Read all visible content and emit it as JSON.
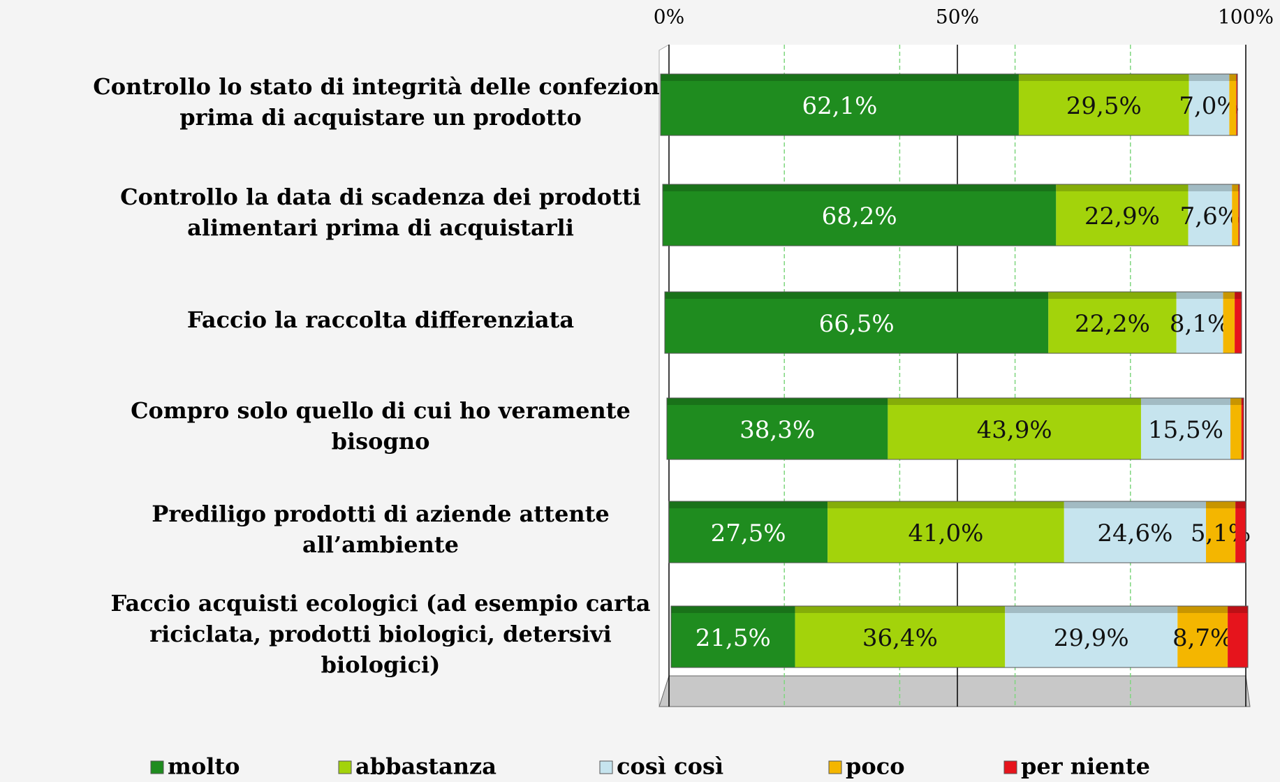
{
  "chart_data": {
    "type": "stacked-bar-horizontal",
    "categories": [
      "Controllo lo stato di integrità delle confezioni\nprima di acquistare un prodotto",
      "Controllo la data di scadenza dei prodotti\nalimentari prima di acquistarli",
      "Faccio la raccolta differenziata",
      "Compro solo quello di cui ho veramente\nbisogno",
      "Prediligo prodotti di aziende attente\nall’ambiente",
      "Faccio acquisti ecologici (ad esempio carta\nriciclata, prodotti biologici, detersivi\nbiologici)"
    ],
    "series": [
      {
        "name": "molto",
        "color": "#1f8c1f",
        "values": [
          62.1,
          68.2,
          66.5,
          38.3,
          27.5,
          21.5
        ],
        "value_labels": [
          "62,1%",
          "68,2%",
          "66,5%",
          "38,3%",
          "27,5%",
          "21,5%"
        ]
      },
      {
        "name": "abbastanza",
        "color": "#a3d30b",
        "values": [
          29.5,
          22.9,
          22.2,
          43.9,
          41.0,
          36.4
        ],
        "value_labels": [
          "29,5%",
          "22,9%",
          "22,2%",
          "43,9%",
          "41,0%",
          "36,4%"
        ]
      },
      {
        "name": "così così",
        "color": "#c6e4ee",
        "values": [
          7.0,
          7.6,
          8.1,
          15.5,
          24.6,
          29.9
        ],
        "value_labels": [
          "7,0%",
          "7,6%",
          "8,1%",
          "15,5%",
          "24,6%",
          "29,9%"
        ]
      },
      {
        "name": "poco",
        "color": "#f4b600",
        "values": [
          1.2,
          1.1,
          2.0,
          1.9,
          5.1,
          8.7
        ],
        "value_labels": [
          null,
          null,
          null,
          null,
          "5,1%",
          "8,7%"
        ]
      },
      {
        "name": "per niente",
        "color": "#e6141c",
        "values": [
          0.2,
          0.2,
          1.2,
          0.4,
          1.8,
          3.5
        ],
        "value_labels": [
          null,
          null,
          null,
          null,
          null,
          null
        ]
      }
    ],
    "xlim": [
      0,
      100
    ],
    "xticks": [
      {
        "value": 0,
        "label": "0%"
      },
      {
        "value": 50,
        "label": "50%"
      },
      {
        "value": 100,
        "label": "100%"
      }
    ],
    "minor_xticks": [
      20,
      40,
      60,
      80
    ],
    "grid": true,
    "legend": "bottom"
  }
}
